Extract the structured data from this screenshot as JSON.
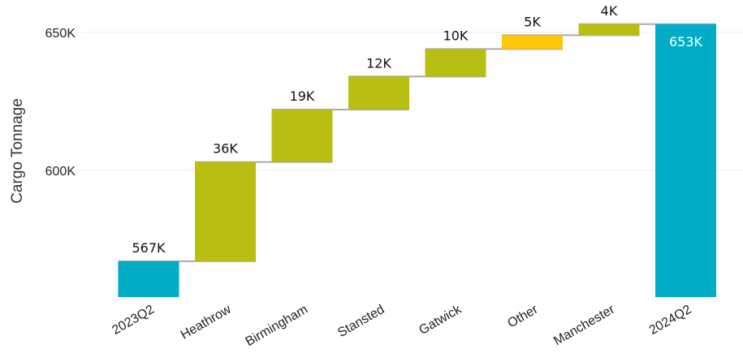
{
  "chart_data": {
    "type": "waterfall",
    "ylabel": "Cargo Tonnage",
    "xlabel": "",
    "title": "",
    "ylim": [
      554000,
      660000
    ],
    "yticks": [
      {
        "value": 600000,
        "label": "600K"
      },
      {
        "value": 650000,
        "label": "650K"
      }
    ],
    "grid": true,
    "categories": [
      "2023Q2",
      "Heathrow",
      "Birmingham",
      "Stansted",
      "Gatwick",
      "Other",
      "Manchester",
      "2024Q2"
    ],
    "bars": [
      {
        "category": "2023Q2",
        "kind": "total",
        "start": 554000,
        "end": 567000,
        "label": "567K"
      },
      {
        "category": "Heathrow",
        "kind": "increase",
        "start": 567000,
        "end": 603000,
        "label": "36K"
      },
      {
        "category": "Birmingham",
        "kind": "increase",
        "start": 603000,
        "end": 622000,
        "label": "19K"
      },
      {
        "category": "Stansted",
        "kind": "increase",
        "start": 622000,
        "end": 634000,
        "label": "12K"
      },
      {
        "category": "Gatwick",
        "kind": "increase",
        "start": 634000,
        "end": 644000,
        "label": "10K"
      },
      {
        "category": "Other",
        "kind": "other",
        "start": 644000,
        "end": 649000,
        "label": "5K"
      },
      {
        "category": "Manchester",
        "kind": "increase",
        "start": 649000,
        "end": 653000,
        "label": "4K"
      },
      {
        "category": "2024Q2",
        "kind": "total",
        "start": 554000,
        "end": 653000,
        "label": "653K"
      }
    ],
    "colors": {
      "total": "#00acc6",
      "increase": "#b8bf12",
      "other": "#ffc60a",
      "connector": "#aaaaaa",
      "grid": "#ebebeb"
    }
  }
}
